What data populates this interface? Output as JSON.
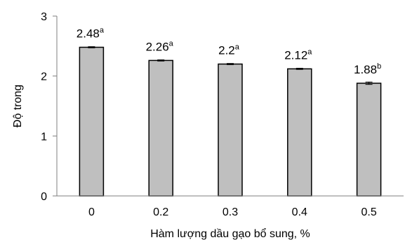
{
  "chart_data": {
    "type": "bar",
    "categories": [
      "0",
      "0.2",
      "0.3",
      "0.4",
      "0.5"
    ],
    "values": [
      2.48,
      2.26,
      2.2,
      2.12,
      1.88
    ],
    "errors": [
      0.01,
      0.01,
      0.01,
      0.01,
      0.02
    ],
    "value_labels": [
      "2.48",
      "2.26",
      "2.2",
      "2.12",
      "1.88"
    ],
    "significance": [
      "a",
      "a",
      "a",
      "a",
      "b"
    ],
    "title": "",
    "xlabel": "Hàm lượng dầu gạo bổ sung, %",
    "ylabel": "Độ trong",
    "ylim": [
      0,
      3
    ],
    "yticks": [
      "0",
      "1",
      "2",
      "3"
    ],
    "grid": false,
    "legend": "none",
    "bar_color": "#bfbfbf",
    "bar_stroke": "#000000"
  }
}
